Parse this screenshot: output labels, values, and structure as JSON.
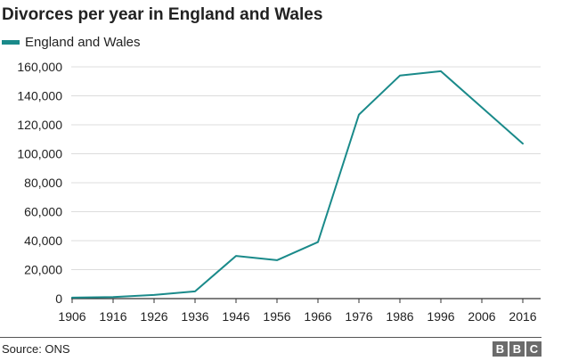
{
  "chart_data": {
    "type": "line",
    "title": "Divorces per year in England and Wales",
    "xlabel": "",
    "ylabel": "",
    "categories": [
      "1906",
      "1916",
      "1926",
      "1936",
      "1946",
      "1956",
      "1966",
      "1976",
      "1986",
      "1996",
      "2006",
      "2016"
    ],
    "x": [
      1906,
      1916,
      1926,
      1936,
      1946,
      1956,
      1966,
      1976,
      1986,
      1996,
      2006,
      2016
    ],
    "series": [
      {
        "name": "England and Wales",
        "color": "#1a8a8a",
        "values": [
          700,
          1100,
          2500,
          5000,
          29500,
          26500,
          39000,
          127000,
          154000,
          157000,
          132000,
          107000
        ]
      }
    ],
    "yticks": [
      0,
      20000,
      40000,
      60000,
      80000,
      100000,
      120000,
      140000,
      160000
    ],
    "ytick_labels": [
      "0",
      "20,000",
      "40,000",
      "60,000",
      "80,000",
      "100,000",
      "120,000",
      "140,000",
      "160,000"
    ],
    "ylim": [
      0,
      160000
    ],
    "xlim": [
      1906,
      2016
    ],
    "grid": true,
    "legend_position": "top-left"
  },
  "footer": {
    "source": "Source: ONS",
    "logo_letters": [
      "B",
      "B",
      "C"
    ]
  }
}
